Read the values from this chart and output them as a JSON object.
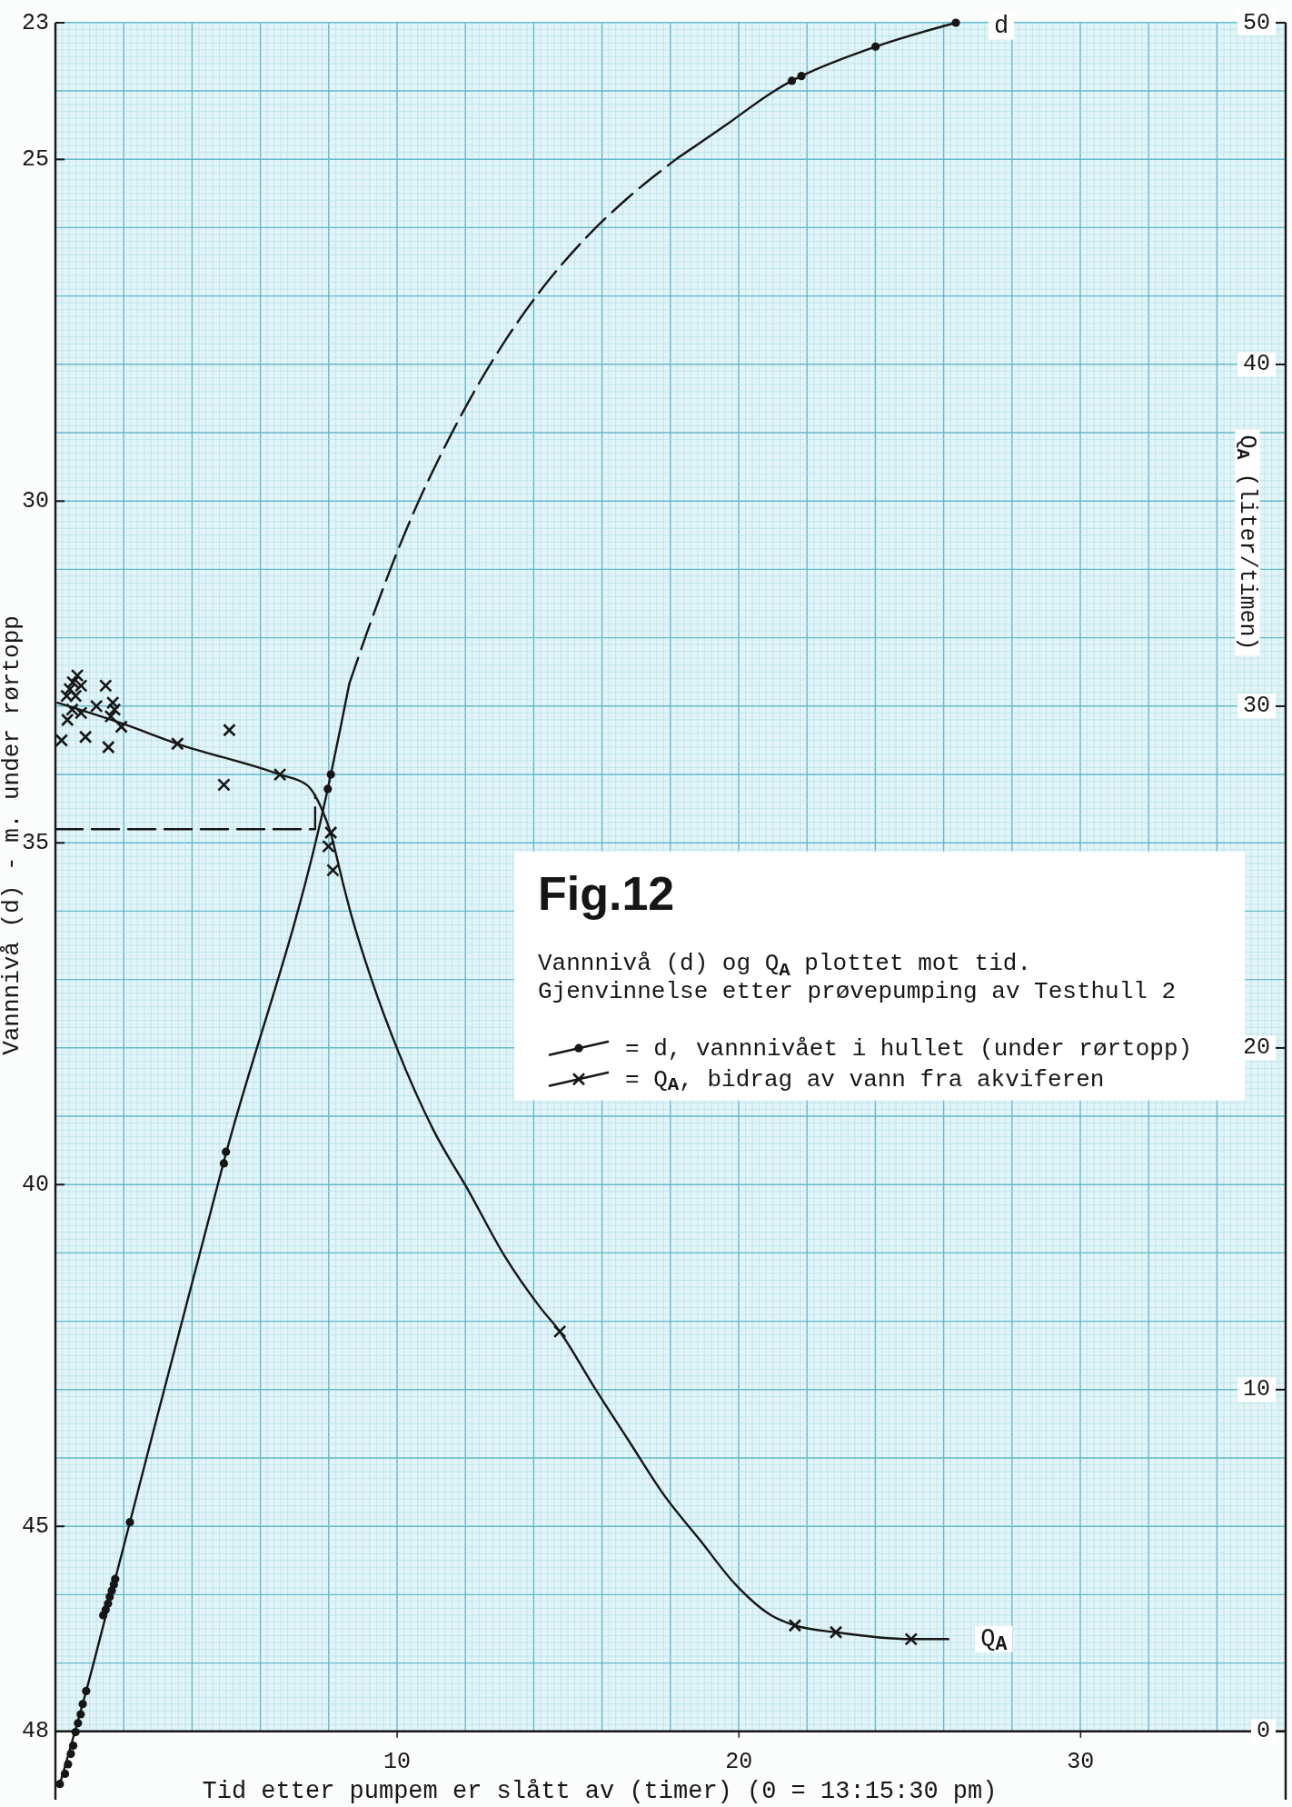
{
  "chart_data": {
    "type": "line",
    "title": "Fig.12",
    "subtitle": "Vannnivå (d) og Q$_{A}$ plottet mot tid.\nGjenvinnelse etter prøvepumping av Testhull 2",
    "xlabel": "Tid etter pumpem er slått av (timer) (0 = 13:15:30 pm)",
    "ylabel": "Vannnivå (d) - m. under rørtopp",
    "y2label": "Q$_{A}$ (liter/timen)",
    "xlim": [
      0,
      36
    ],
    "xticks": [
      10,
      20,
      30
    ],
    "ylim": [
      49,
      23
    ],
    "yticks": [
      23,
      25,
      30,
      35,
      40,
      45,
      48
    ],
    "y2lim": [
      -2,
      50
    ],
    "y2ticks": [
      0,
      10,
      20,
      30,
      40,
      50
    ],
    "grid": true,
    "legend": "right",
    "annotations": [
      "d",
      "Q$_{A}$"
    ],
    "series": [
      {
        "name": "= d, vannnivået i hullet (under rørtopp)",
        "type": "scatter",
        "marker": "circle",
        "color": "#161616",
        "x": [
          0.13,
          0.28,
          0.37,
          0.45,
          0.52,
          0.59,
          0.66,
          0.74,
          0.8,
          0.9,
          1.4,
          1.47,
          1.54,
          1.59,
          1.65,
          1.71,
          1.75,
          2.18,
          4.93,
          4.99,
          7.97,
          8.06,
          21.55,
          21.83,
          24.0,
          26.35
        ],
        "values": [
          48.77,
          48.62,
          48.48,
          48.33,
          48.21,
          48.01,
          47.88,
          47.75,
          47.6,
          47.41,
          46.3,
          46.22,
          46.13,
          46.03,
          45.94,
          45.85,
          45.77,
          44.94,
          39.69,
          39.52,
          34.21,
          34.0,
          23.85,
          23.78,
          23.35,
          23.0
        ]
      },
      {
        "line_style": "solid",
        "color": "#161616",
        "x": [
          0.13,
          0.9,
          1.75,
          2.18,
          4.96,
          7.97,
          8.06,
          8.34,
          8.6
        ],
        "values": [
          48.77,
          47.41,
          45.77,
          44.94,
          39.6,
          34.21,
          34.0,
          33.32,
          32.67
        ]
      },
      {
        "line_style": "dashed",
        "color": "#161616",
        "x": [
          8.6,
          9.12,
          9.9,
          10.55,
          11.33,
          12.24,
          13.15,
          14.32,
          15.48,
          16.78,
          18.21
        ],
        "values": [
          32.67,
          31.92,
          30.87,
          30.09,
          29.27,
          28.41,
          27.66,
          26.84,
          26.17,
          25.55,
          24.98
        ]
      },
      {
        "line_style": "solid",
        "color": "#161616",
        "x": [
          18.21,
          19.64,
          20.94,
          21.55,
          21.83,
          24.0,
          26.35
        ],
        "values": [
          24.98,
          24.49,
          24.03,
          23.85,
          23.78,
          23.35,
          23.0
        ]
      },
      {
        "name": "= Q$_{A}$, bidrag av vann fra akviferen",
        "type": "scatter",
        "marker": "cross",
        "axis": "y2",
        "color": "#161616",
        "x": [
          0.18,
          0.35,
          0.33,
          0.42,
          0.51,
          0.64,
          0.75,
          0.59,
          0.49,
          0.75,
          0.88,
          1.2,
          1.47,
          1.55,
          1.68,
          1.73,
          1.62,
          1.93,
          3.57,
          5.09,
          4.93,
          6.57,
          8.06,
          7.99,
          8.12,
          14.76,
          21.64,
          22.84,
          25.04
        ],
        "values": [
          29.0,
          29.6,
          30.3,
          30.5,
          30.7,
          30.9,
          30.6,
          30.3,
          29.9,
          29.8,
          29.1,
          30.0,
          30.6,
          28.8,
          30.1,
          29.9,
          29.7,
          29.4,
          28.9,
          29.3,
          27.7,
          28.0,
          26.3,
          25.9,
          25.2,
          11.7,
          3.1,
          2.9,
          2.7
        ]
      },
      {
        "line_style": "solid",
        "axis": "y2",
        "color": "#161616",
        "x": [
          0.06,
          1.93,
          3.57,
          6.57,
          7.35,
          7.62,
          7.79,
          8.02,
          8.42,
          8.6,
          9.25,
          10.03,
          11.06,
          12.1,
          13.15,
          14.19,
          14.76,
          15.75,
          16.78,
          17.82,
          18.86,
          19.9,
          20.94,
          21.64,
          22.84,
          25.04,
          26.13
        ],
        "values": [
          30.1,
          29.5,
          28.9,
          28.0,
          27.7,
          27.35,
          27.0,
          26.4,
          24.8,
          24.1,
          22.0,
          19.9,
          17.6,
          15.8,
          13.9,
          12.4,
          11.7,
          10.1,
          8.5,
          6.9,
          5.6,
          4.3,
          3.4,
          3.1,
          2.9,
          2.7,
          2.7
        ]
      },
      {
        "line_style": "dashed",
        "color": "#161616",
        "x": [
          0,
          7.6,
          7.6
        ],
        "values": [
          34.8,
          34.8,
          34.3
        ]
      }
    ]
  }
}
